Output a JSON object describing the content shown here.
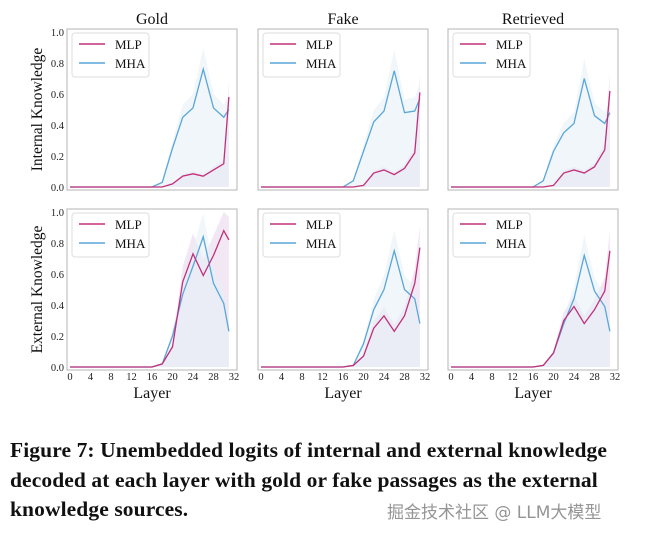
{
  "chart_data": [
    {
      "type": "line",
      "panel": "top-left",
      "title": "Gold",
      "ylabel": "Internal Knowledge",
      "xlabel": "",
      "xlim": [
        0,
        32
      ],
      "ylim": [
        0,
        1
      ],
      "x": [
        0,
        2,
        4,
        6,
        8,
        10,
        12,
        14,
        16,
        18,
        20,
        22,
        24,
        26,
        28,
        30,
        31
      ],
      "series": [
        {
          "name": "MLP",
          "values": [
            0,
            0,
            0,
            0,
            0,
            0,
            0,
            0,
            0,
            0,
            0.02,
            0.07,
            0.085,
            0.07,
            0.11,
            0.15,
            0.58
          ]
        },
        {
          "name": "MHA",
          "values": [
            0,
            0,
            0,
            0,
            0,
            0,
            0,
            0,
            0,
            0.03,
            0.25,
            0.45,
            0.51,
            0.76,
            0.51,
            0.45,
            0.5
          ]
        }
      ]
    },
    {
      "type": "line",
      "panel": "top-middle",
      "title": "Fake",
      "ylabel": "",
      "xlabel": "",
      "xlim": [
        0,
        32
      ],
      "ylim": [
        0,
        1
      ],
      "x": [
        0,
        2,
        4,
        6,
        8,
        10,
        12,
        14,
        16,
        18,
        20,
        22,
        24,
        26,
        28,
        30,
        31
      ],
      "series": [
        {
          "name": "MLP",
          "values": [
            0,
            0,
            0,
            0,
            0,
            0,
            0,
            0,
            0,
            0,
            0.01,
            0.09,
            0.11,
            0.08,
            0.12,
            0.22,
            0.61
          ]
        },
        {
          "name": "MHA",
          "values": [
            0,
            0,
            0,
            0,
            0,
            0,
            0,
            0,
            0,
            0.04,
            0.23,
            0.42,
            0.49,
            0.75,
            0.48,
            0.49,
            0.57
          ]
        }
      ]
    },
    {
      "type": "line",
      "panel": "top-right",
      "title": "Retrieved",
      "ylabel": "",
      "xlabel": "",
      "xlim": [
        0,
        32
      ],
      "ylim": [
        0,
        1
      ],
      "x": [
        0,
        2,
        4,
        6,
        8,
        10,
        12,
        14,
        16,
        18,
        20,
        22,
        24,
        26,
        28,
        30,
        31
      ],
      "series": [
        {
          "name": "MLP",
          "values": [
            0,
            0,
            0,
            0,
            0,
            0,
            0,
            0,
            0,
            0,
            0.01,
            0.09,
            0.11,
            0.09,
            0.13,
            0.24,
            0.62
          ]
        },
        {
          "name": "MHA",
          "values": [
            0,
            0,
            0,
            0,
            0,
            0,
            0,
            0,
            0,
            0.04,
            0.23,
            0.35,
            0.41,
            0.7,
            0.46,
            0.41,
            0.48
          ]
        }
      ]
    },
    {
      "type": "line",
      "panel": "bottom-left",
      "title": "",
      "ylabel": "External Knowledge",
      "xlabel": "Layer",
      "xlim": [
        0,
        32
      ],
      "ylim": [
        0,
        1
      ],
      "x": [
        0,
        2,
        4,
        6,
        8,
        10,
        12,
        14,
        16,
        18,
        20,
        22,
        24,
        26,
        28,
        30,
        31
      ],
      "series": [
        {
          "name": "MLP",
          "values": [
            0,
            0,
            0,
            0,
            0,
            0,
            0,
            0,
            0,
            0.02,
            0.13,
            0.55,
            0.73,
            0.59,
            0.72,
            0.88,
            0.82
          ]
        },
        {
          "name": "MHA",
          "values": [
            0,
            0,
            0,
            0,
            0,
            0,
            0,
            0,
            0,
            0.02,
            0.2,
            0.47,
            0.65,
            0.84,
            0.54,
            0.41,
            0.23
          ]
        }
      ]
    },
    {
      "type": "line",
      "panel": "bottom-middle",
      "title": "",
      "ylabel": "",
      "xlabel": "Layer",
      "xlim": [
        0,
        32
      ],
      "ylim": [
        0,
        1
      ],
      "x": [
        0,
        2,
        4,
        6,
        8,
        10,
        12,
        14,
        16,
        18,
        20,
        22,
        24,
        26,
        28,
        30,
        31
      ],
      "series": [
        {
          "name": "MLP",
          "values": [
            0,
            0,
            0,
            0,
            0,
            0,
            0,
            0,
            0,
            0.01,
            0.07,
            0.25,
            0.33,
            0.23,
            0.33,
            0.54,
            0.77
          ]
        },
        {
          "name": "MHA",
          "values": [
            0,
            0,
            0,
            0,
            0,
            0,
            0,
            0,
            0,
            0.01,
            0.15,
            0.37,
            0.5,
            0.75,
            0.5,
            0.44,
            0.28
          ]
        }
      ]
    },
    {
      "type": "line",
      "panel": "bottom-right",
      "title": "",
      "ylabel": "",
      "xlabel": "Layer",
      "xlim": [
        0,
        32
      ],
      "ylim": [
        0,
        1
      ],
      "x": [
        0,
        2,
        4,
        6,
        8,
        10,
        12,
        14,
        16,
        18,
        20,
        22,
        24,
        26,
        28,
        30,
        31
      ],
      "series": [
        {
          "name": "MLP",
          "values": [
            0,
            0,
            0,
            0,
            0,
            0,
            0,
            0,
            0,
            0.01,
            0.09,
            0.3,
            0.39,
            0.28,
            0.37,
            0.49,
            0.75
          ]
        },
        {
          "name": "MHA",
          "values": [
            0,
            0,
            0,
            0,
            0,
            0,
            0,
            0,
            0,
            0.01,
            0.09,
            0.28,
            0.44,
            0.72,
            0.49,
            0.39,
            0.23
          ]
        }
      ]
    }
  ],
  "yticks": [
    "0.0",
    "0.2",
    "0.4",
    "0.6",
    "0.8",
    "1.0"
  ],
  "xticks": [
    "0",
    "4",
    "8",
    "12",
    "16",
    "20",
    "24",
    "28",
    "32"
  ],
  "legend": [
    "MLP",
    "MHA"
  ],
  "colors": {
    "MLP": "#c2307a",
    "MHA": "#5aa6d9",
    "MLP_fill": "#e9d8ec",
    "MHA_fill": "#e6f0f7"
  },
  "caption": "Figure 7: Unembedded logits of internal and external knowledge decoded at each layer with gold or fake passages as the external knowledge sources.",
  "watermark": "掘金技术社区 @ LLM大模型"
}
